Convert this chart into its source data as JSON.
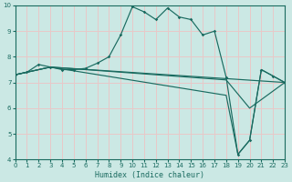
{
  "xlabel": "Humidex (Indice chaleur)",
  "xlim": [
    0,
    23
  ],
  "ylim": [
    4,
    10
  ],
  "xticks": [
    0,
    1,
    2,
    3,
    4,
    5,
    6,
    7,
    8,
    9,
    10,
    11,
    12,
    13,
    14,
    15,
    16,
    17,
    18,
    19,
    20,
    21,
    22,
    23
  ],
  "yticks": [
    4,
    5,
    6,
    7,
    8,
    9,
    10
  ],
  "bg_color": "#cbe8e4",
  "grid_color": "#e8c8c8",
  "line_color": "#1a6b60",
  "line1": {
    "x": [
      0,
      1,
      2,
      3,
      4,
      5,
      6,
      7,
      8,
      9,
      10,
      11,
      12,
      13,
      14,
      15,
      16,
      17,
      18,
      19,
      20,
      21,
      22,
      23
    ],
    "y": [
      7.3,
      7.4,
      7.7,
      7.6,
      7.5,
      7.5,
      7.55,
      7.75,
      8.0,
      8.85,
      9.95,
      9.75,
      9.45,
      9.9,
      9.55,
      9.45,
      8.85,
      9.0,
      7.2,
      4.2,
      4.75,
      7.5,
      7.25,
      7.0
    ]
  },
  "line2": {
    "x": [
      0,
      3,
      23
    ],
    "y": [
      7.3,
      7.6,
      7.0
    ]
  },
  "line3": {
    "x": [
      0,
      3,
      18,
      19,
      20,
      21,
      23
    ],
    "y": [
      7.3,
      7.6,
      6.5,
      4.2,
      4.75,
      7.5,
      7.0
    ]
  },
  "line4": {
    "x": [
      0,
      3,
      18,
      20,
      23
    ],
    "y": [
      7.3,
      7.6,
      7.1,
      6.0,
      7.0
    ]
  }
}
